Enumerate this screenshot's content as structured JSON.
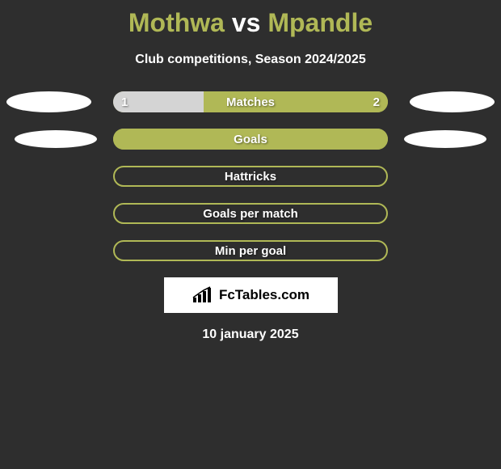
{
  "title": {
    "player1": "Mothwa",
    "vs": "vs",
    "player2": "Mpandle",
    "player1_color": "#b0b856",
    "vs_color": "#ffffff",
    "player2_color": "#b0b856",
    "fontsize": 32
  },
  "subtitle": {
    "text": "Club competitions, Season 2024/2025",
    "color": "#ffffff",
    "fontsize": 16
  },
  "background_color": "#2e2e2e",
  "bar_color_left": "#d4d4d4",
  "bar_color_right": "#b0b856",
  "bar_border_color": "#b0b856",
  "ellipse_color": "#ffffff",
  "label_color": "#ffffff",
  "label_fontsize": 15,
  "rows": [
    {
      "label": "Matches",
      "left_value": "1",
      "right_value": "2",
      "left_pct": 33,
      "right_pct": 67,
      "show_values": true,
      "show_ellipses": true,
      "ellipse_small": false,
      "bordered": false
    },
    {
      "label": "Goals",
      "left_value": "",
      "right_value": "",
      "left_pct": 0,
      "right_pct": 100,
      "show_values": false,
      "show_ellipses": true,
      "ellipse_small": true,
      "bordered": false
    },
    {
      "label": "Hattricks",
      "left_value": "",
      "right_value": "",
      "left_pct": 0,
      "right_pct": 0,
      "show_values": false,
      "show_ellipses": false,
      "ellipse_small": false,
      "bordered": true
    },
    {
      "label": "Goals per match",
      "left_value": "",
      "right_value": "",
      "left_pct": 0,
      "right_pct": 0,
      "show_values": false,
      "show_ellipses": false,
      "ellipse_small": false,
      "bordered": true
    },
    {
      "label": "Min per goal",
      "left_value": "",
      "right_value": "",
      "left_pct": 0,
      "right_pct": 0,
      "show_values": false,
      "show_ellipses": false,
      "ellipse_small": false,
      "bordered": true
    }
  ],
  "logo": {
    "text": "FcTables.com",
    "background_color": "#ffffff",
    "text_color": "#000000",
    "fontsize": 17
  },
  "date": {
    "text": "10 january 2025",
    "color": "#ffffff",
    "fontsize": 16
  }
}
